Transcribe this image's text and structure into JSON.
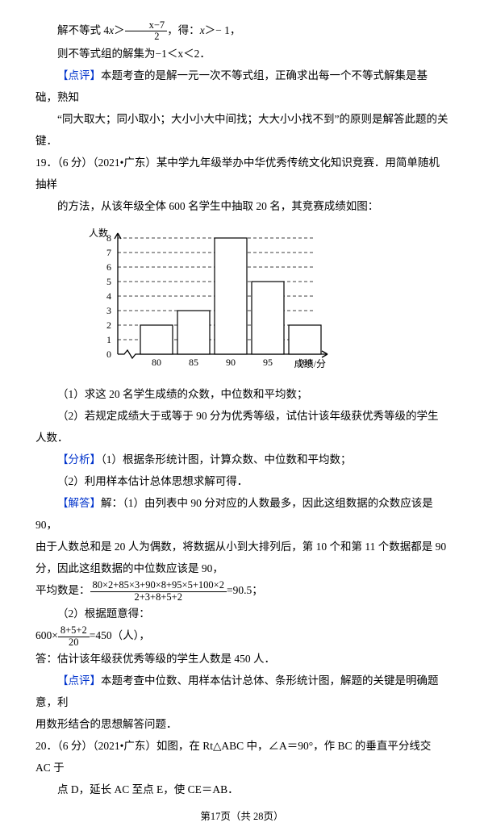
{
  "top": {
    "line1_a": "解不等式 4",
    "line1_var": "x",
    "line1_b": "＞",
    "frac1": {
      "num": "x−7",
      "den": "2"
    },
    "line1_c": "，得：",
    "line1_d": "x",
    "line1_e": "＞− 1，",
    "line2": "则不等式组的解集为−1＜x＜2．",
    "comment_label": "【点评】",
    "comment_a": "本题考查的是解一元一次不等式组，正确求出每一个不等式解集是基础，熟知",
    "comment_b": "“同大取大；同小取小；大小小大中间找；大大小小找不到”的原则是解答此题的关键．"
  },
  "q19": {
    "num": "19．（6 分）（2021•广东）某中学九年级举办中华优秀传统文化知识竞赛．用简单随机抽样",
    "tail": "的方法，从该年级全体 600 名学生中抽取 20 名，其竞赛成绩如图：",
    "chart": {
      "type": "bar",
      "x_label": "成绩/分",
      "y_label": "人数",
      "categories": [
        "80",
        "85",
        "90",
        "95",
        "100"
      ],
      "values": [
        2,
        3,
        8,
        5,
        2
      ],
      "y_ticks": [
        0,
        1,
        2,
        3,
        4,
        5,
        6,
        7,
        8
      ],
      "bar_fill": "#ffffff",
      "bar_stroke": "#000000",
      "axis_color": "#000000",
      "dash_color": "#000000",
      "font_size": 12
    },
    "sub1": "（1）求这 20 名学生成绩的众数，中位数和平均数；",
    "sub2": "（2）若规定成绩大于或等于 90 分为优秀等级，试估计该年级获优秀等级的学生人数．",
    "analysis_label": "【分析】",
    "analysis1": "（1）根据条形统计图，计算众数、中位数和平均数；",
    "analysis2": "（2）利用样本估计总体思想求解可得．",
    "solve_label": "【解答】",
    "solve1": "解：（1）由列表中 90 分对应的人数最多，因此这组数据的众数应该是 90，",
    "solve2": "由于人数总和是 20 人为偶数，将数据从小到大排列后，第 10 个和第 11 个数据都是 90",
    "solve3": "分，因此这组数据的中位数应该是 90，",
    "mean_prefix": "平均数是：",
    "mean_frac": {
      "num": "80×2+85×3+90×8+95×5+100×2",
      "den": "2+3+8+5+2"
    },
    "mean_suffix": "=90.5；",
    "part2_line1": "（2）根据题意得：",
    "part2_prefix": "600×",
    "part2_frac": {
      "num": "8+5+2",
      "den": "20"
    },
    "part2_suffix": "=450（人），",
    "answer": "答：估计该年级获优秀等级的学生人数是 450 人．",
    "review_label": "【点评】",
    "review1": "本题考查中位数、用样本估计总体、条形统计图，解题的关键是明确题意，利",
    "review2": "用数形结合的思想解答问题．"
  },
  "q20": {
    "num": "20．（6 分）（2021•广东）如图，在 Rt△ABC 中，∠A＝90°，作 BC 的垂直平分线交 AC 于",
    "tail": "点 D，延长 AC 至点 E，使 CE＝AB．"
  },
  "footer": "第17页（共 28页）"
}
